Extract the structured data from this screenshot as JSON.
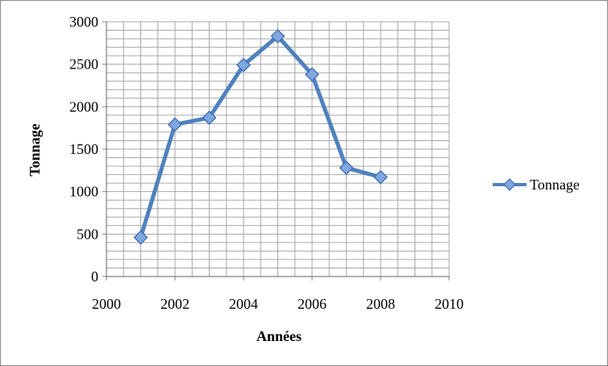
{
  "chart_data": {
    "type": "line",
    "title": "",
    "xlabel": "Années",
    "ylabel": "Tonnage",
    "xlim": [
      2000,
      2010
    ],
    "ylim": [
      0,
      3000
    ],
    "x_ticks": [
      2000,
      2002,
      2004,
      2006,
      2008,
      2010
    ],
    "y_ticks": [
      0,
      500,
      1000,
      1500,
      2000,
      2500,
      3000
    ],
    "grid": true,
    "legend_position": "right",
    "series": [
      {
        "name": "Tonnage",
        "color": "#4f81bd",
        "marker": "diamond",
        "x": [
          2001,
          2002,
          2003,
          2004,
          2005,
          2006,
          2007,
          2008
        ],
        "y": [
          460,
          1790,
          1870,
          2490,
          2830,
          2380,
          1280,
          1170
        ]
      }
    ]
  }
}
